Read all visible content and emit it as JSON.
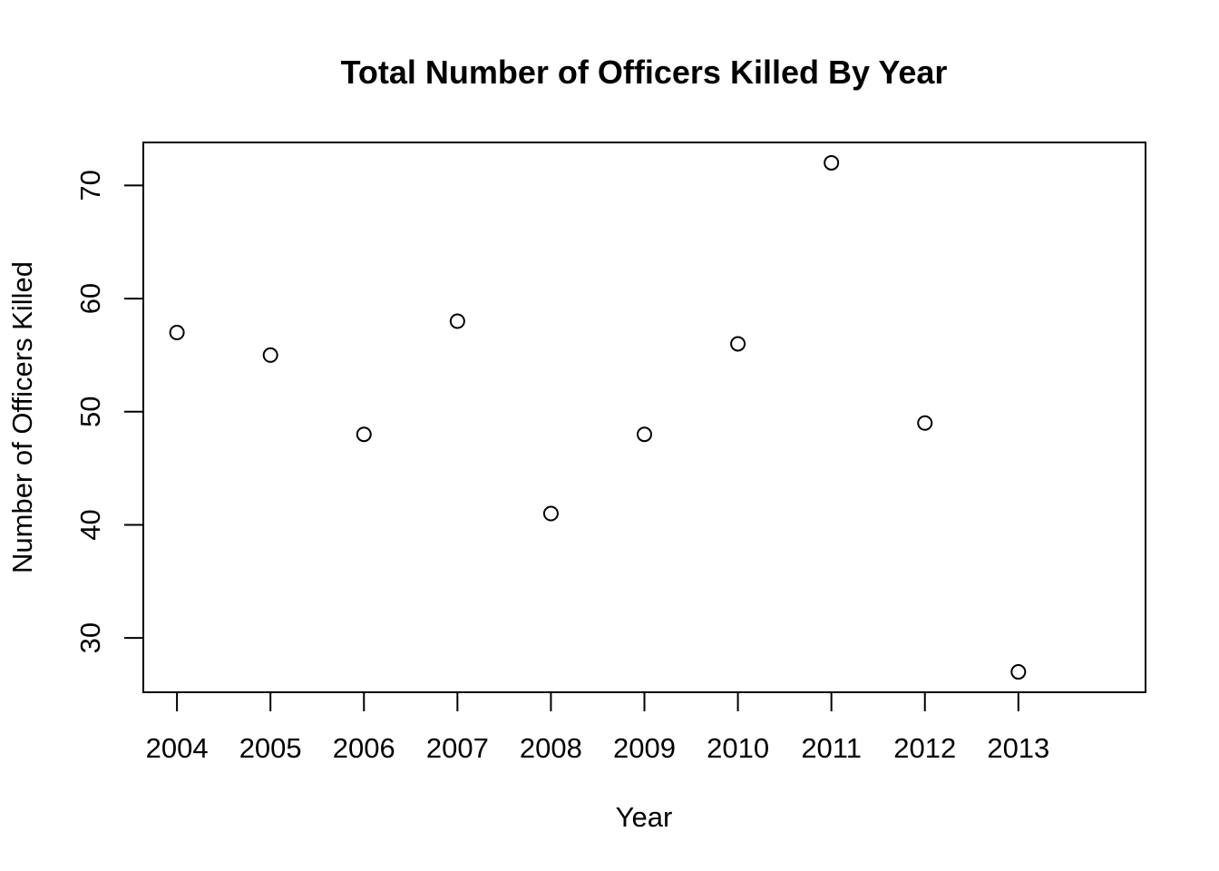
{
  "chart_data": {
    "type": "scatter",
    "title": "Total Number of Officers Killed By Year",
    "xlabel": "Year",
    "ylabel": "Number of Officers Killed",
    "x": [
      2004,
      2005,
      2006,
      2007,
      2008,
      2009,
      2010,
      2011,
      2012,
      2013
    ],
    "y": [
      57,
      55,
      48,
      58,
      41,
      48,
      56,
      72,
      49,
      27
    ],
    "xlim": [
      2003.64,
      2014.36
    ],
    "ylim": [
      25.2,
      73.8
    ],
    "x_ticks": [
      "2004",
      "2005",
      "2006",
      "2007",
      "2008",
      "2009",
      "2010",
      "2011",
      "2012",
      "2013"
    ],
    "y_ticks": [
      "30",
      "40",
      "50",
      "60",
      "70"
    ],
    "marker": "open-circle",
    "grid": false,
    "legend": false,
    "colors": {
      "ink": "#000000",
      "background": "#ffffff"
    }
  }
}
